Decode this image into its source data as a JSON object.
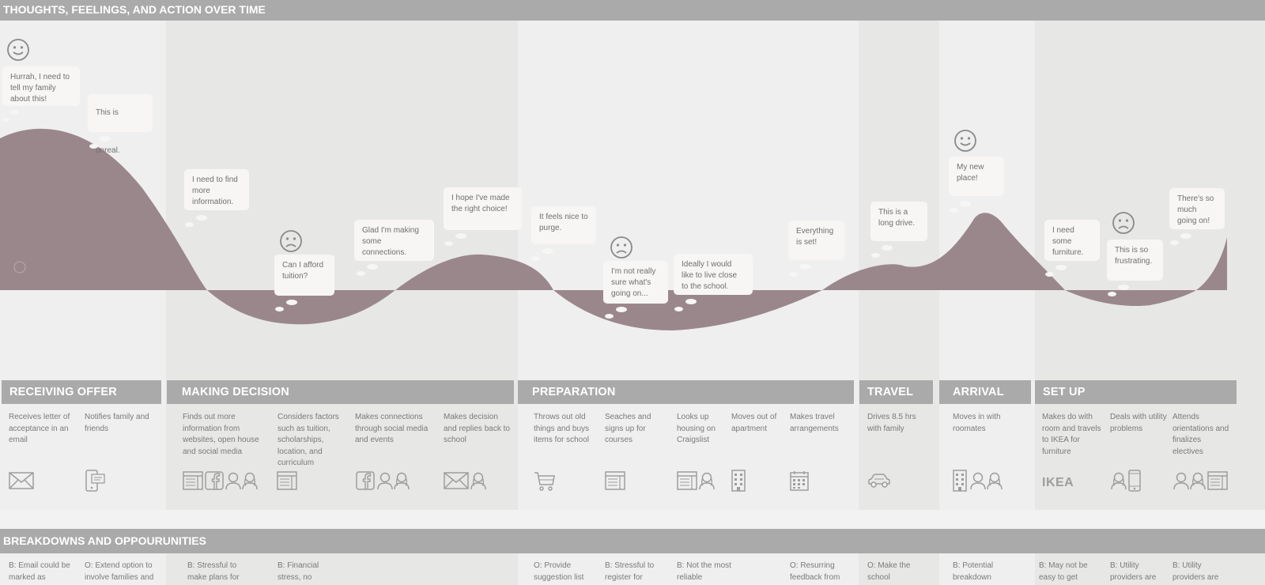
{
  "section_title": "THOUGHTS, FEELINGS, AND ACTION OVER TIME",
  "breakdown_title": "BREAKDOWNS AND OPPOURUNITIES",
  "colors": {
    "curve": "#9a878c",
    "header": "#a9aaa9",
    "bubble": "#f7f6f4",
    "icon": "#9d9d9d"
  },
  "stages": [
    {
      "title": "RECEIVING OFFER"
    },
    {
      "title": "MAKING DECISION"
    },
    {
      "title": "PREPARATION"
    },
    {
      "title": "TRAVEL"
    },
    {
      "title": "ARRIVAL"
    },
    {
      "title": "SET UP"
    }
  ],
  "thoughts": [
    {
      "text": "Hurrah, I need to tell my family about this!"
    },
    {
      "text": "This is unreal."
    },
    {
      "text": "I need to find more information."
    },
    {
      "text": "Can I afford tuition?"
    },
    {
      "text": "Glad I'm making some connections."
    },
    {
      "text": "I hope I've made the right choice!"
    },
    {
      "text": "It feels nice to purge."
    },
    {
      "text": "I'm not really sure what's going on..."
    },
    {
      "text": "Ideally I would like to live close to the school."
    },
    {
      "text": "Everything is set!"
    },
    {
      "text": "This is a long drive."
    },
    {
      "text": "My new place!"
    },
    {
      "text": "I need some furniture."
    },
    {
      "text": "This is so frustrating."
    },
    {
      "text": "There's so much going on!"
    }
  ],
  "faces": [
    "happy-face-icon",
    "sad-face-icon",
    "sad-face-icon",
    "happy-face-icon",
    "sad-face-icon"
  ],
  "actions": [
    {
      "text": "Receives letter of acceptance in an email",
      "icons": [
        "mail-icon"
      ]
    },
    {
      "text": "Notifies family and friends",
      "icons": [
        "phone-icon"
      ]
    },
    {
      "text": "Finds out more information from websites, open house and social media",
      "icons": [
        "website-icon",
        "facebook-icon",
        "people-icon"
      ]
    },
    {
      "text": "Considers factors such as tuition, scholarships, location, and curriculum",
      "icons": [
        "website-icon"
      ]
    },
    {
      "text": "Makes connections through social media and events",
      "icons": [
        "facebook-icon",
        "people-icon"
      ]
    },
    {
      "text": "Makes decision and replies back to school",
      "icons": [
        "mail-icon",
        "person-icon"
      ]
    },
    {
      "text": "Throws out old things and buys items for school",
      "icons": [
        "cart-icon"
      ]
    },
    {
      "text": "Seaches and signs up for courses",
      "icons": [
        "website-icon"
      ]
    },
    {
      "text": "Looks up housing on Craigslist",
      "icons": [
        "website-icon",
        "person-icon"
      ]
    },
    {
      "text": "Moves out of apartment",
      "icons": [
        "building-icon"
      ]
    },
    {
      "text": "Makes travel arrangements",
      "icons": [
        "calendar-icon"
      ]
    },
    {
      "text": "Drives 8.5 hrs with family",
      "icons": [
        "car-icon"
      ]
    },
    {
      "text": "Moves in with roomates",
      "icons": [
        "building-icon",
        "people-icon"
      ]
    },
    {
      "text": "Makes do with room and travels to IKEA for furniture",
      "icons": [
        "ikea-logo"
      ]
    },
    {
      "text": "Deals with utility problems",
      "icons": [
        "person-icon",
        "phone-icon"
      ]
    },
    {
      "text": "Attends orientations and finalizes electives",
      "icons": [
        "people-icon",
        "website-icon"
      ]
    }
  ],
  "ikea_label": "IKEA",
  "breakdowns": [
    {
      "text": "B: Email could be marked as"
    },
    {
      "text": "O: Extend option to involve families and"
    },
    {
      "text": "B: Stressful to make plans for"
    },
    {
      "text": "B: Financial stress, no"
    },
    {
      "text": "O: Provide suggestion list"
    },
    {
      "text": "B: Stressful to register for"
    },
    {
      "text": "B: Not the most reliable"
    },
    {
      "text": "O: Resurring feedback from"
    },
    {
      "text": "O: Make the school"
    },
    {
      "text": "B: Potential breakdown"
    },
    {
      "text": "B: May not be easy to get"
    },
    {
      "text": "B: Utility providers are"
    },
    {
      "text": "B: Utility providers are"
    }
  ]
}
